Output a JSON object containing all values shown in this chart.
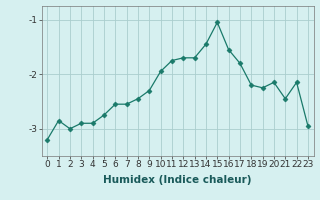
{
  "xlabel": "Humidex (Indice chaleur)",
  "x": [
    0,
    1,
    2,
    3,
    4,
    5,
    6,
    7,
    8,
    9,
    10,
    11,
    12,
    13,
    14,
    15,
    16,
    17,
    18,
    19,
    20,
    21,
    22,
    23
  ],
  "y": [
    -3.2,
    -2.85,
    -3.0,
    -2.9,
    -2.9,
    -2.75,
    -2.55,
    -2.55,
    -2.45,
    -2.3,
    -1.95,
    -1.75,
    -1.7,
    -1.7,
    -1.45,
    -1.05,
    -1.55,
    -1.8,
    -2.2,
    -2.25,
    -2.15,
    -2.45,
    -2.15,
    -2.95
  ],
  "line_color": "#1a7a6a",
  "marker": "D",
  "marker_size": 2.5,
  "bg_color": "#d6f0f0",
  "grid_color": "#aacece",
  "ylim": [
    -3.5,
    -0.75
  ],
  "xlim": [
    -0.5,
    23.5
  ],
  "yticks": [
    -3,
    -2,
    -1
  ],
  "xticks": [
    0,
    1,
    2,
    3,
    4,
    5,
    6,
    7,
    8,
    9,
    10,
    11,
    12,
    13,
    14,
    15,
    16,
    17,
    18,
    19,
    20,
    21,
    22,
    23
  ],
  "tick_fontsize": 6.5,
  "xlabel_fontsize": 7.5
}
